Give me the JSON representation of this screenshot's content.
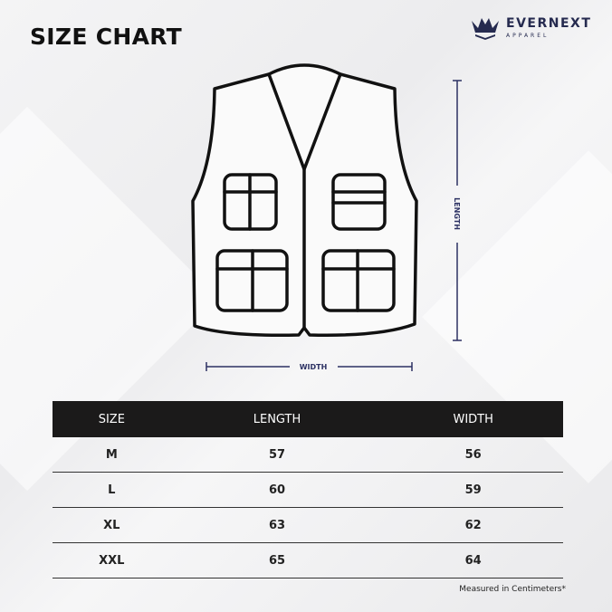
{
  "title": "SIZE CHART",
  "brand": {
    "name": "EVERNEXT",
    "tagline": "APPAREL",
    "color": "#252a4f"
  },
  "diagram": {
    "length_label": "LENGTH",
    "width_label": "WIDTH",
    "measure_color": "#2c3163"
  },
  "table": {
    "headers": [
      "SIZE",
      "LENGTH",
      "WIDTH"
    ],
    "rows": [
      [
        "M",
        "57",
        "56"
      ],
      [
        "L",
        "60",
        "59"
      ],
      [
        "XL",
        "63",
        "62"
      ],
      [
        "XXL",
        "65",
        "64"
      ]
    ]
  },
  "note": "Measured in Centimeters*"
}
